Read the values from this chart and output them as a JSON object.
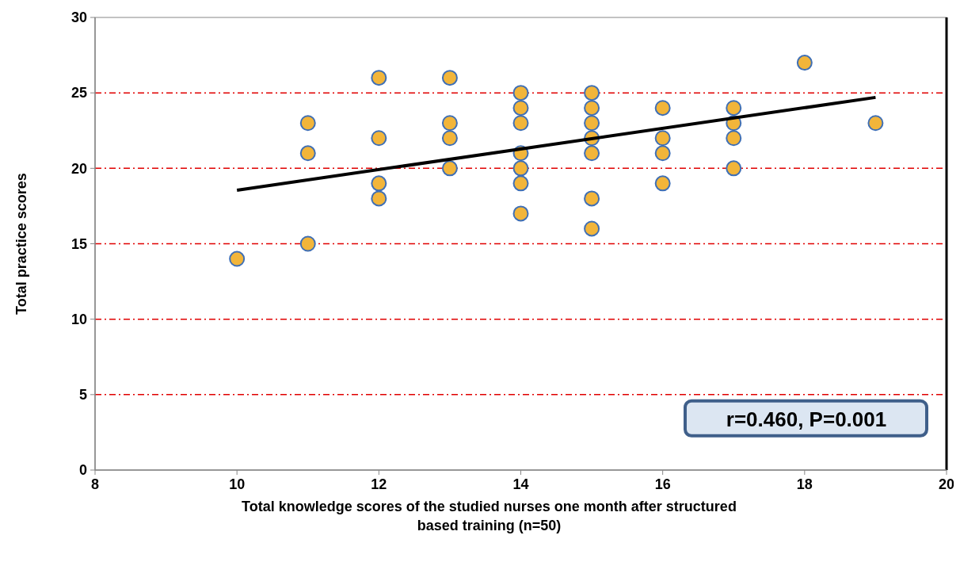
{
  "chart_data": {
    "type": "scatter",
    "xlabel": "Total knowledge scores of the studied nurses one month after structured based training (n=50)",
    "ylabel": "Total practice scores",
    "xlim": [
      8,
      20
    ],
    "xticks": [
      8,
      10,
      12,
      14,
      16,
      18,
      20
    ],
    "ylim": [
      0,
      30
    ],
    "yticks": [
      0,
      5,
      10,
      15,
      20,
      25,
      30
    ],
    "grid": "y",
    "marker": "circle",
    "annotations": [
      "r=0.460, P=0.001"
    ],
    "series": [
      {
        "color": "#f2b53a",
        "x": [
          10,
          11,
          11,
          11,
          12,
          12,
          12,
          12,
          13,
          13,
          13,
          13,
          14,
          14,
          14,
          14,
          14,
          14,
          14,
          15,
          15,
          15,
          15,
          15,
          15,
          15,
          16,
          16,
          16,
          16,
          17,
          17,
          17,
          17,
          18,
          19
        ],
        "values": [
          14,
          23,
          21,
          15,
          26,
          22,
          19,
          18,
          26,
          23,
          22,
          20,
          25,
          24,
          23,
          21,
          20,
          19,
          17,
          25,
          24,
          23,
          22,
          21,
          18,
          16,
          24,
          22,
          21,
          19,
          24,
          23,
          22,
          20,
          27,
          23
        ]
      },
      {
        "type": "line",
        "marker": "none",
        "color": "#000000",
        "x": [
          10,
          19
        ],
        "values": [
          18.55,
          24.7
        ]
      }
    ]
  }
}
